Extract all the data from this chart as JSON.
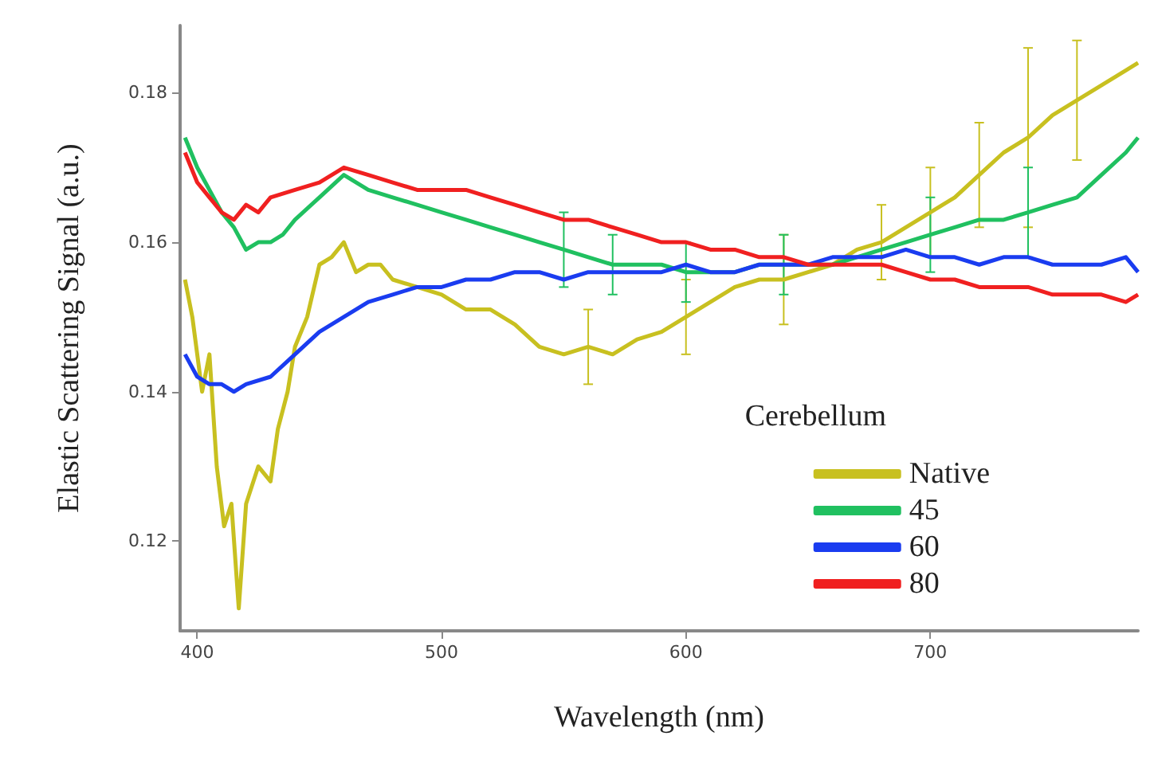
{
  "chart_data": {
    "type": "line",
    "xlabel": "Wavelength (nm)",
    "ylabel": "Elastic Scattering Signal (a.u.)",
    "legend_title": "Cerebellum",
    "legend": "bottom right",
    "grid": false,
    "marker": "none",
    "line_style": "solid",
    "xlim": [
      393,
      785
    ],
    "ylim": [
      0.108,
      0.189
    ],
    "xticks": [
      400,
      500,
      600,
      700
    ],
    "yticks": [
      0.12,
      0.14,
      0.16,
      0.18
    ],
    "series": [
      {
        "name": "Native",
        "color": "#c8c020",
        "x": [
          395,
          398,
          402,
          405,
          408,
          411,
          414,
          417,
          420,
          425,
          430,
          433,
          437,
          440,
          445,
          450,
          455,
          460,
          465,
          470,
          475,
          480,
          490,
          500,
          510,
          520,
          530,
          540,
          550,
          560,
          570,
          580,
          590,
          600,
          610,
          620,
          630,
          640,
          650,
          660,
          670,
          680,
          690,
          700,
          710,
          720,
          730,
          740,
          750,
          760,
          770,
          780,
          785
        ],
        "values": [
          0.155,
          0.15,
          0.14,
          0.145,
          0.13,
          0.122,
          0.125,
          0.111,
          0.125,
          0.13,
          0.128,
          0.135,
          0.14,
          0.146,
          0.15,
          0.157,
          0.158,
          0.16,
          0.156,
          0.157,
          0.157,
          0.155,
          0.154,
          0.153,
          0.151,
          0.151,
          0.149,
          0.146,
          0.145,
          0.146,
          0.145,
          0.147,
          0.148,
          0.15,
          0.152,
          0.154,
          0.155,
          0.155,
          0.156,
          0.157,
          0.159,
          0.16,
          0.162,
          0.164,
          0.166,
          0.169,
          0.172,
          0.174,
          0.177,
          0.179,
          0.181,
          0.183,
          0.184
        ],
        "errors": [
          null,
          null,
          null,
          null,
          null,
          null,
          null,
          null,
          null,
          null,
          null,
          null,
          null,
          null,
          null,
          null,
          null,
          null,
          null,
          null,
          null,
          null,
          null,
          null,
          null,
          null,
          null,
          null,
          null,
          0.005,
          null,
          null,
          null,
          0.005,
          null,
          null,
          null,
          0.006,
          null,
          null,
          null,
          0.005,
          null,
          0.006,
          null,
          0.007,
          null,
          0.012,
          null,
          0.008,
          null,
          null,
          null
        ]
      },
      {
        "name": "45",
        "color": "#20c060",
        "x": [
          395,
          400,
          405,
          410,
          415,
          420,
          425,
          430,
          435,
          440,
          450,
          460,
          470,
          480,
          490,
          500,
          510,
          520,
          530,
          540,
          550,
          560,
          570,
          580,
          590,
          600,
          610,
          620,
          630,
          640,
          650,
          660,
          670,
          680,
          690,
          700,
          710,
          720,
          730,
          740,
          750,
          760,
          770,
          780,
          785
        ],
        "values": [
          0.174,
          0.17,
          0.167,
          0.164,
          0.162,
          0.159,
          0.16,
          0.16,
          0.161,
          0.163,
          0.166,
          0.169,
          0.167,
          0.166,
          0.165,
          0.164,
          0.163,
          0.162,
          0.161,
          0.16,
          0.159,
          0.158,
          0.157,
          0.157,
          0.157,
          0.156,
          0.156,
          0.156,
          0.157,
          0.157,
          0.157,
          0.157,
          0.158,
          0.159,
          0.16,
          0.161,
          0.162,
          0.163,
          0.163,
          0.164,
          0.165,
          0.166,
          0.169,
          0.172,
          0.174
        ],
        "errors": [
          null,
          null,
          null,
          null,
          null,
          null,
          null,
          null,
          null,
          null,
          null,
          null,
          null,
          null,
          null,
          null,
          null,
          null,
          null,
          null,
          0.005,
          null,
          0.004,
          null,
          null,
          0.004,
          null,
          null,
          null,
          0.004,
          null,
          null,
          null,
          null,
          null,
          0.005,
          null,
          null,
          null,
          0.006,
          null,
          null,
          null,
          null,
          null
        ]
      },
      {
        "name": "60",
        "color": "#1a3cf0",
        "x": [
          395,
          400,
          405,
          410,
          415,
          420,
          430,
          440,
          450,
          460,
          470,
          480,
          490,
          500,
          510,
          520,
          530,
          540,
          550,
          560,
          570,
          580,
          590,
          600,
          610,
          620,
          630,
          640,
          650,
          660,
          670,
          680,
          690,
          700,
          710,
          720,
          730,
          740,
          750,
          760,
          770,
          780,
          785
        ],
        "values": [
          0.145,
          0.142,
          0.141,
          0.141,
          0.14,
          0.141,
          0.142,
          0.145,
          0.148,
          0.15,
          0.152,
          0.153,
          0.154,
          0.154,
          0.155,
          0.155,
          0.156,
          0.156,
          0.155,
          0.156,
          0.156,
          0.156,
          0.156,
          0.157,
          0.156,
          0.156,
          0.157,
          0.157,
          0.157,
          0.158,
          0.158,
          0.158,
          0.159,
          0.158,
          0.158,
          0.157,
          0.158,
          0.158,
          0.157,
          0.157,
          0.157,
          0.158,
          0.156
        ]
      },
      {
        "name": "80",
        "color": "#f02020",
        "x": [
          395,
          400,
          405,
          410,
          415,
          420,
          425,
          430,
          440,
          450,
          460,
          470,
          480,
          490,
          500,
          510,
          520,
          530,
          540,
          550,
          560,
          570,
          580,
          590,
          600,
          610,
          620,
          630,
          640,
          650,
          660,
          670,
          680,
          690,
          700,
          710,
          720,
          730,
          740,
          750,
          760,
          770,
          780,
          785
        ],
        "values": [
          0.172,
          0.168,
          0.166,
          0.164,
          0.163,
          0.165,
          0.164,
          0.166,
          0.167,
          0.168,
          0.17,
          0.169,
          0.168,
          0.167,
          0.167,
          0.167,
          0.166,
          0.165,
          0.164,
          0.163,
          0.163,
          0.162,
          0.161,
          0.16,
          0.16,
          0.159,
          0.159,
          0.158,
          0.158,
          0.157,
          0.157,
          0.157,
          0.157,
          0.156,
          0.155,
          0.155,
          0.154,
          0.154,
          0.154,
          0.153,
          0.153,
          0.153,
          0.152,
          0.153
        ]
      }
    ]
  }
}
